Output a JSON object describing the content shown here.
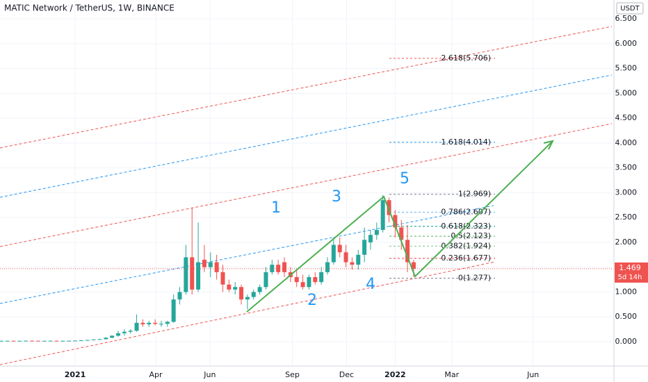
{
  "chart_data": {
    "type": "candlestick",
    "title": "MATIC Network / TetherUS, 1W, BINANCE",
    "currency": "USDT",
    "x": [
      -12,
      -11,
      -10,
      -9,
      -8,
      -7,
      -6,
      -5,
      -4,
      -3,
      -2,
      -1,
      0,
      1,
      2,
      3,
      4,
      5,
      6,
      7,
      8,
      9,
      10,
      11,
      12,
      13,
      14,
      15,
      16,
      17,
      18,
      19,
      20,
      21,
      22,
      23,
      24,
      25,
      26,
      27,
      28,
      29,
      30,
      31,
      32,
      33,
      34,
      35,
      36,
      37,
      38,
      39,
      40,
      41,
      42,
      43,
      44,
      45,
      46,
      47,
      48,
      49,
      50,
      51,
      52,
      53,
      54,
      55
    ],
    "open": [
      0.016,
      0.017,
      0.018,
      0.017,
      0.018,
      0.019,
      0.018,
      0.017,
      0.018,
      0.019,
      0.018,
      0.018,
      0.018,
      0.022,
      0.028,
      0.035,
      0.045,
      0.05,
      0.08,
      0.12,
      0.17,
      0.2,
      0.22,
      0.38,
      0.35,
      0.38,
      0.36,
      0.36,
      0.4,
      0.85,
      1.0,
      1.7,
      1.05,
      1.65,
      1.5,
      1.6,
      1.4,
      1.15,
      1.05,
      1.1,
      0.85,
      0.9,
      1.0,
      1.1,
      1.4,
      1.55,
      1.6,
      1.4,
      1.3,
      1.2,
      1.1,
      1.3,
      1.2,
      1.4,
      1.6,
      1.95,
      1.8,
      1.6,
      1.55,
      1.75,
      2.0,
      2.15,
      2.25,
      2.85,
      2.55,
      2.3,
      2.05,
      1.6
    ],
    "high": [
      0.02,
      0.021,
      0.022,
      0.021,
      0.022,
      0.023,
      0.022,
      0.021,
      0.022,
      0.023,
      0.022,
      0.022,
      0.025,
      0.03,
      0.04,
      0.05,
      0.06,
      0.09,
      0.13,
      0.22,
      0.25,
      0.25,
      0.55,
      0.45,
      0.42,
      0.45,
      0.42,
      0.42,
      0.95,
      1.1,
      1.95,
      2.7,
      2.4,
      1.95,
      1.8,
      1.75,
      1.55,
      1.25,
      1.2,
      1.15,
      0.95,
      1.05,
      1.15,
      1.5,
      1.65,
      1.65,
      1.7,
      1.5,
      1.45,
      1.35,
      1.35,
      1.4,
      1.5,
      1.7,
      2.1,
      2.1,
      1.95,
      1.7,
      1.85,
      2.3,
      2.25,
      2.4,
      2.95,
      2.9,
      2.65,
      2.45,
      2.35,
      1.65
    ],
    "low": [
      0.013,
      0.014,
      0.015,
      0.014,
      0.015,
      0.016,
      0.015,
      0.014,
      0.015,
      0.016,
      0.015,
      0.015,
      0.016,
      0.02,
      0.025,
      0.03,
      0.04,
      0.045,
      0.07,
      0.1,
      0.12,
      0.16,
      0.2,
      0.3,
      0.3,
      0.33,
      0.3,
      0.3,
      0.38,
      0.75,
      0.95,
      0.95,
      1.0,
      1.4,
      1.3,
      1.25,
      1.0,
      1.0,
      0.95,
      0.75,
      0.65,
      0.85,
      0.95,
      1.05,
      1.35,
      1.35,
      1.3,
      1.2,
      1.1,
      1.05,
      1.05,
      1.15,
      1.15,
      1.35,
      1.55,
      1.7,
      1.5,
      1.45,
      1.45,
      1.6,
      1.85,
      2.05,
      2.2,
      2.4,
      2.1,
      1.85,
      1.4,
      1.3
    ],
    "close": [
      0.017,
      0.018,
      0.017,
      0.018,
      0.019,
      0.018,
      0.017,
      0.018,
      0.019,
      0.018,
      0.018,
      0.018,
      0.022,
      0.028,
      0.035,
      0.045,
      0.05,
      0.08,
      0.12,
      0.17,
      0.2,
      0.22,
      0.38,
      0.35,
      0.38,
      0.36,
      0.36,
      0.4,
      0.85,
      1.0,
      1.7,
      1.05,
      1.6,
      1.5,
      1.6,
      1.4,
      1.15,
      1.05,
      1.1,
      0.85,
      0.9,
      1.0,
      1.1,
      1.4,
      1.55,
      1.4,
      1.4,
      1.3,
      1.2,
      1.1,
      1.3,
      1.2,
      1.4,
      1.6,
      1.95,
      1.8,
      1.6,
      1.55,
      1.75,
      2.05,
      2.15,
      2.25,
      2.85,
      2.55,
      2.3,
      2.05,
      1.6,
      1.469
    ],
    "up_color": "#26a69a",
    "down_color": "#ef5350",
    "xlim": [
      -12.2,
      87.2
    ],
    "xticks": [
      {
        "value": 0,
        "label": "2021"
      },
      {
        "value": 13.1,
        "label": "Apr"
      },
      {
        "value": 21.9,
        "label": "Jun"
      },
      {
        "value": 35.3,
        "label": "Sep"
      },
      {
        "value": 44.1,
        "label": "Dec"
      },
      {
        "value": 52,
        "label": "2022"
      },
      {
        "value": 61.2,
        "label": "Mar"
      },
      {
        "value": 74.4,
        "label": "Jun"
      }
    ],
    "ylim": [
      -0.49,
      6.88
    ],
    "yticks": [
      {
        "value": 0,
        "label": "0.000"
      },
      {
        "value": 0.5,
        "label": "0.500"
      },
      {
        "value": 1,
        "label": "1.000"
      },
      {
        "value": 1.5,
        "label": "1.500"
      },
      {
        "value": 2,
        "label": "2.000"
      },
      {
        "value": 2.5,
        "label": "2.500"
      },
      {
        "value": 3,
        "label": "3.000"
      },
      {
        "value": 3.5,
        "label": "3.500"
      },
      {
        "value": 4,
        "label": "4.000"
      },
      {
        "value": 4.5,
        "label": "4.500"
      },
      {
        "value": 5,
        "label": "5.000"
      },
      {
        "value": 5.5,
        "label": "5.500"
      },
      {
        "value": 6,
        "label": "6.000"
      },
      {
        "value": 6.5,
        "label": "6.500"
      }
    ],
    "grid": true,
    "last_price": {
      "value": 1.469,
      "label": "1.469",
      "countdown": "5d 14h",
      "color": "#ef5350"
    },
    "fib_levels": [
      {
        "value": 5.706,
        "label": "2.618(5.706)",
        "color": "#ef5350"
      },
      {
        "value": 4.014,
        "label": "1.618(4.014)",
        "color": "#2196f3"
      },
      {
        "value": 2.969,
        "label": "1(2.969)",
        "color": "#787b86"
      },
      {
        "value": 2.607,
        "label": "0.786(2.607)",
        "color": "#64b5f6"
      },
      {
        "value": 2.323,
        "label": "0.618(2.323)",
        "color": "#089981"
      },
      {
        "value": 2.123,
        "label": "0.5(2.123)",
        "color": "#4caf50"
      },
      {
        "value": 1.924,
        "label": "0.382(1.924)",
        "color": "#81c784"
      },
      {
        "value": 1.677,
        "label": "0.236(1.677)",
        "color": "#f23645"
      },
      {
        "value": 1.277,
        "label": "0(1.277)",
        "color": "#787b86"
      }
    ],
    "wave_labels": [
      "1",
      "2",
      "3",
      "4",
      "5"
    ]
  }
}
